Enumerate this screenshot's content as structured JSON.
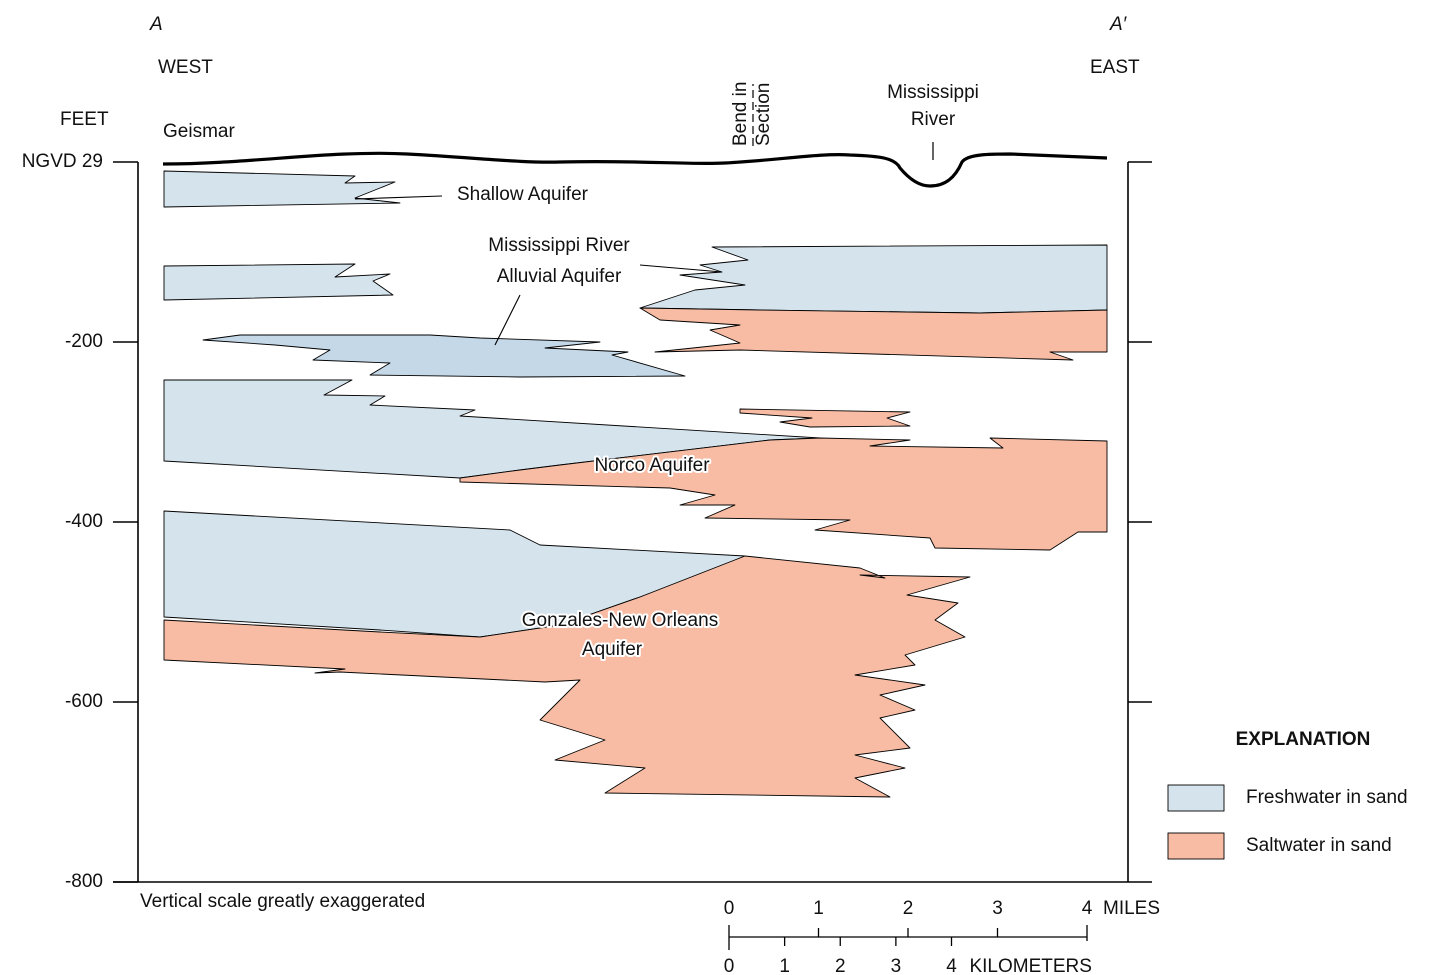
{
  "header": {
    "left_point": "A",
    "right_point": "A′",
    "left_direction": "WEST",
    "right_direction": "EAST"
  },
  "depth_axis": {
    "title": "FEET",
    "datum": {
      "value": 0,
      "label": "NGVD 29"
    },
    "ticks": [
      -200,
      -400,
      -600,
      -800
    ]
  },
  "labels": {
    "town": "Geismar",
    "bend": [
      "Bend in",
      "Section"
    ],
    "river": [
      "Mississippi",
      "River"
    ],
    "shallow": "Shallow Aquifer",
    "alluvial": [
      "Mississippi River",
      "Alluvial Aquifer"
    ],
    "norco": "Norco Aquifer",
    "gonzales": [
      "Gonzales-New Orleans",
      "Aquifer"
    ]
  },
  "note": "Vertical scale greatly exaggerated",
  "scale_bar": {
    "miles": {
      "unit": "MILES",
      "ticks": [
        0,
        1,
        2,
        3,
        4
      ]
    },
    "kilometers": {
      "unit": "KILOMETERS",
      "ticks": [
        0,
        1,
        2,
        3,
        4
      ]
    }
  },
  "legend": {
    "title": "EXPLANATION",
    "items": [
      {
        "label": "Freshwater in sand",
        "color": "#d5e3ec"
      },
      {
        "label": "Saltwater in sand",
        "color": "#f7bca3"
      }
    ]
  }
}
